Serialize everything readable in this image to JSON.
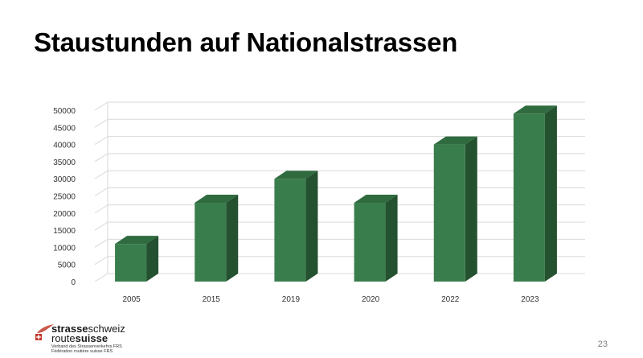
{
  "slide": {
    "title": "Staustunden auf Nationalstrassen",
    "page_number": "23"
  },
  "logo": {
    "line1_bold": "strasse",
    "line1_regular": "schweiz",
    "line2_regular": "route",
    "line2_bold": "suisse",
    "tagline_de": "Verband des Strassenverkehrs FRS",
    "tagline_fr": "Fédération routière suisse FRS",
    "accent_color": "#c0392b"
  },
  "chart_data": {
    "type": "bar",
    "title": "",
    "xlabel": "",
    "ylabel": "",
    "categories": [
      "2005",
      "2015",
      "2019",
      "2020",
      "2022",
      "2023"
    ],
    "values": [
      11000,
      23000,
      30000,
      23000,
      40000,
      49000
    ],
    "ylim": [
      0,
      50000
    ],
    "yticks": [
      "0",
      "5000",
      "10000",
      "15000",
      "20000",
      "25000",
      "30000",
      "35000",
      "40000",
      "45000",
      "50000"
    ],
    "grid": true,
    "style": "3d-column",
    "colors": {
      "front": "#3a7d4d",
      "side": "#24512f",
      "top": "#2f6b3f"
    }
  }
}
